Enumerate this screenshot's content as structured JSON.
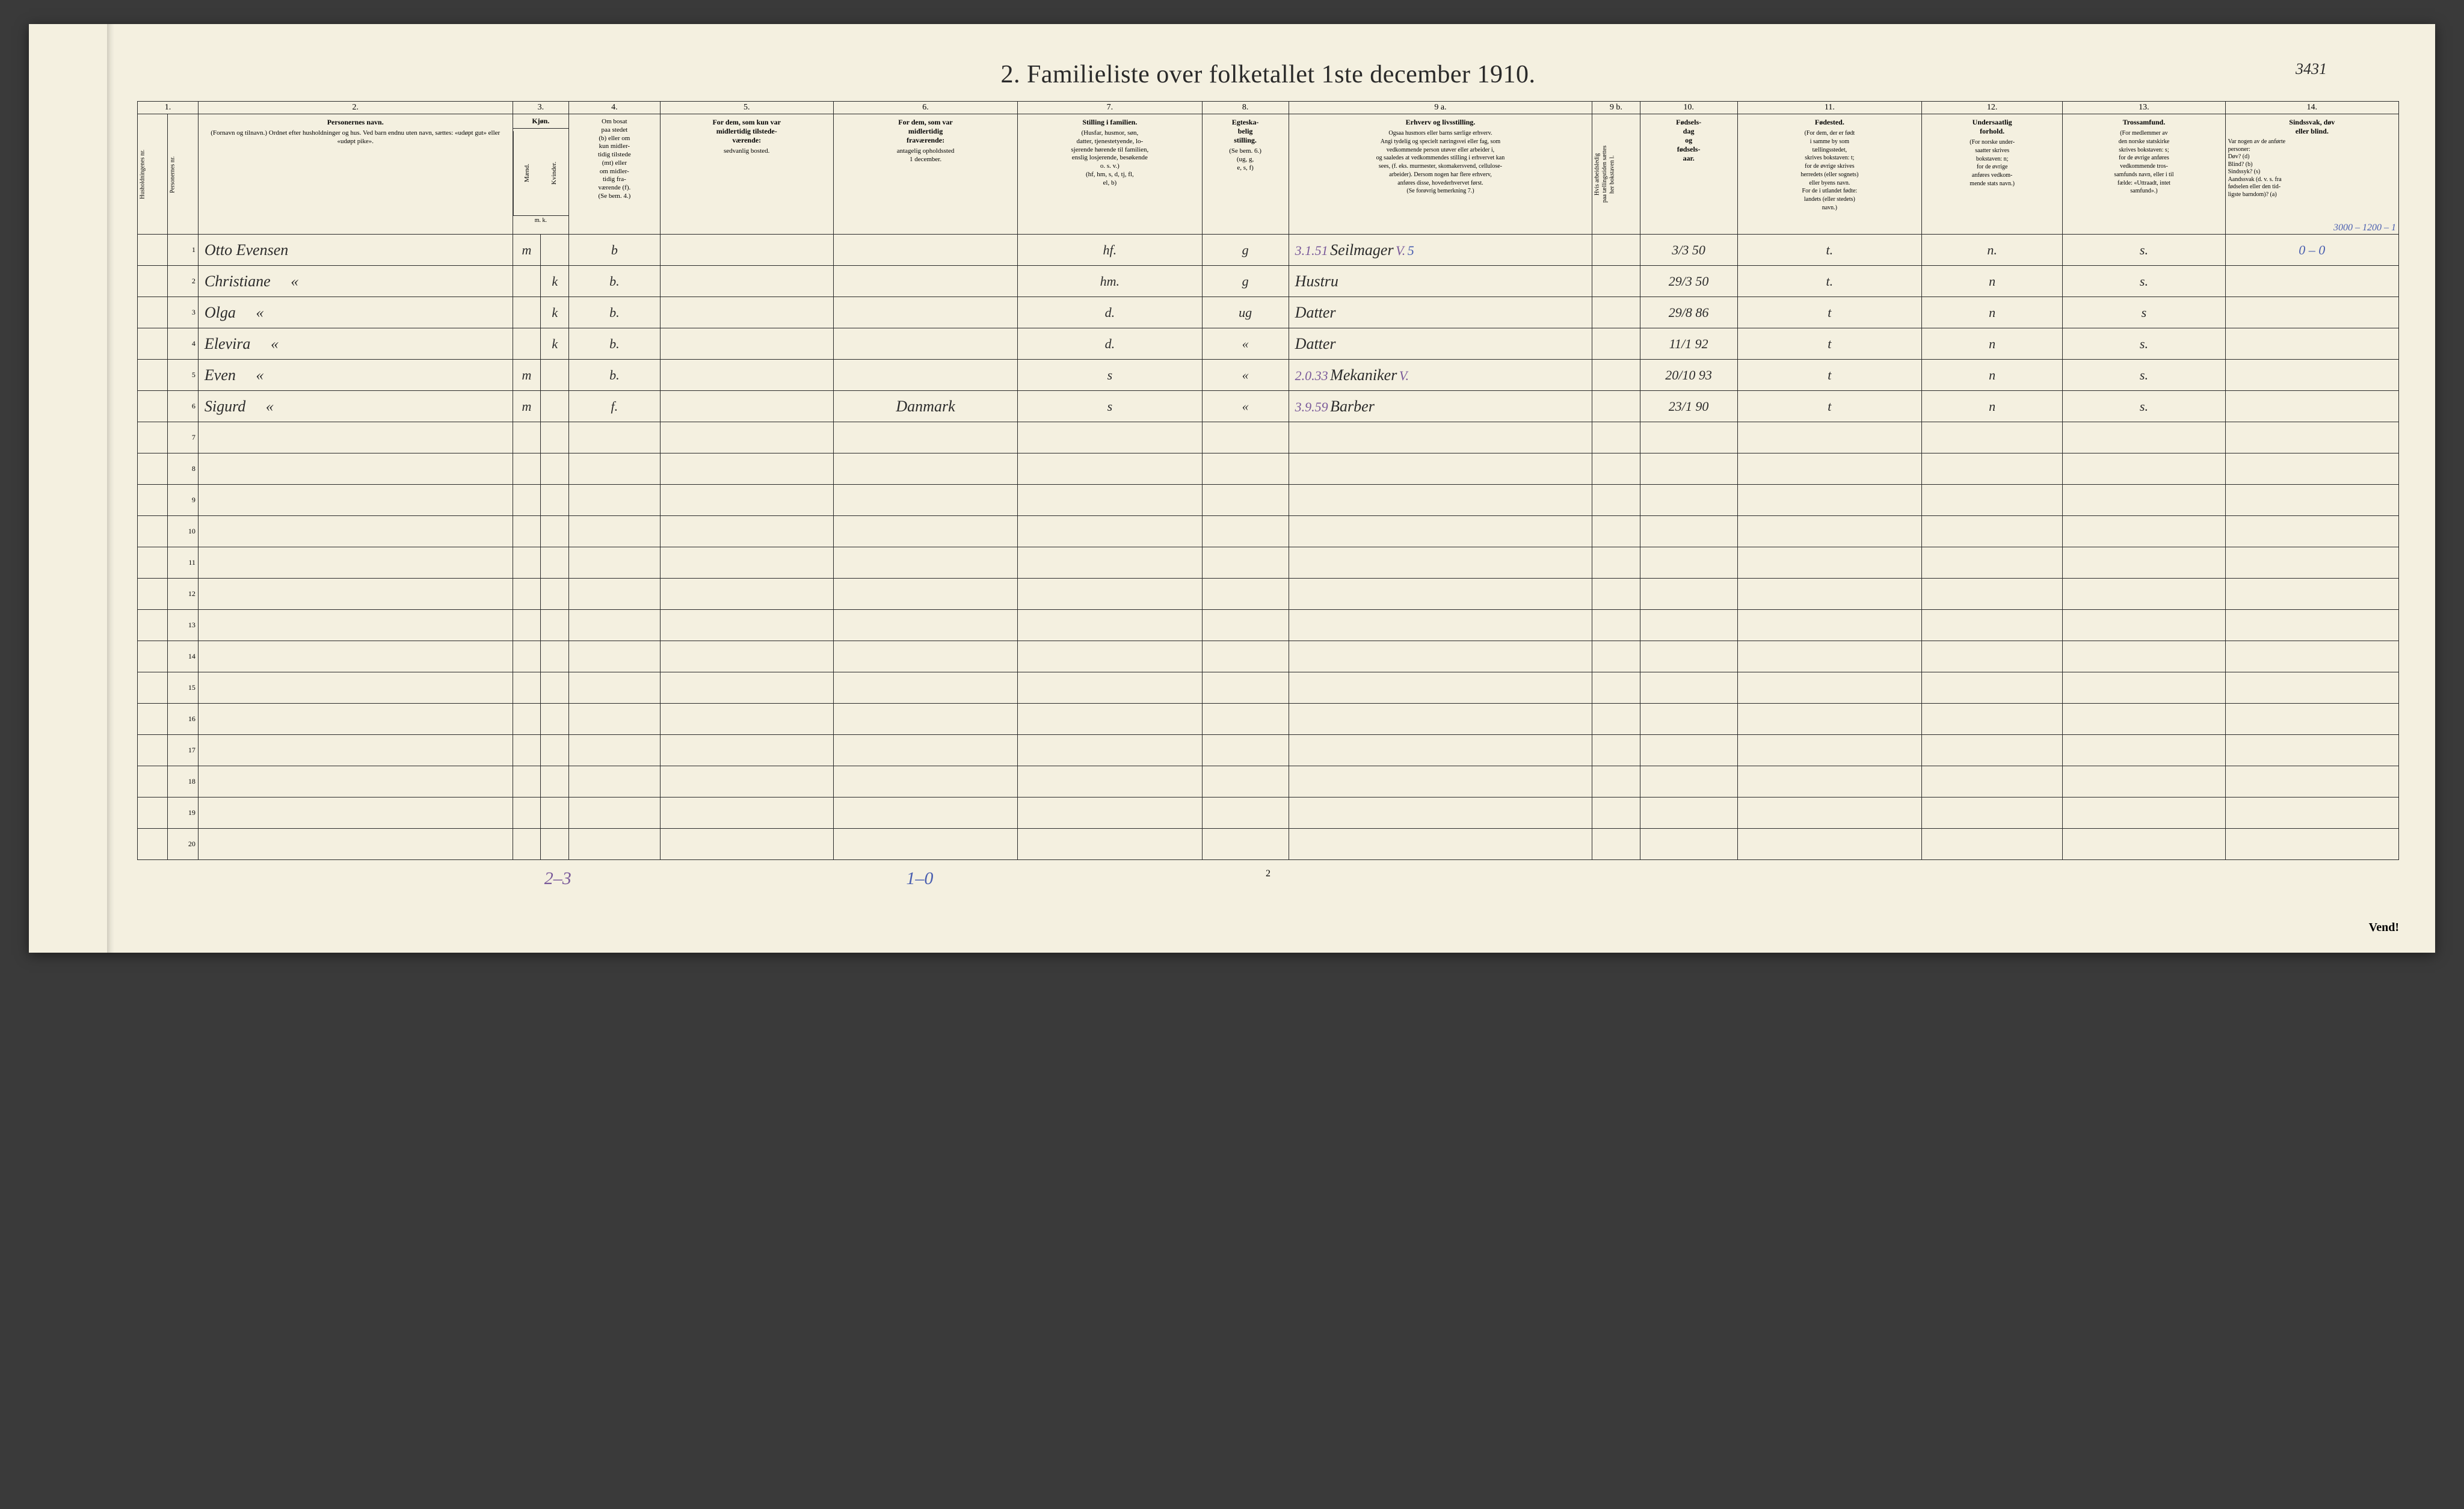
{
  "title": "2.   Familieliste over folketallet 1ste december 1910.",
  "page_annotation": "3431",
  "page_number": "2",
  "vend": "Vend!",
  "footer_annotations": {
    "left": "2–3",
    "mid": "1–0"
  },
  "col_numbers": [
    "1.",
    "2.",
    "3.",
    "4.",
    "5.",
    "6.",
    "7.",
    "8.",
    "9 a.",
    "9 b.",
    "10.",
    "11.",
    "12.",
    "13.",
    "14."
  ],
  "headers": {
    "c1a": "Husholdningenes nr.",
    "c1b": "Personernes nr.",
    "c2_main": "Personernes navn.",
    "c2_sub": "(Fornavn og tilnavn.)\nOrdnet efter husholdninger og hus.\nVed barn endnu uten navn, sættes: «udøpt gut»\neller «udøpt pike».",
    "c3_main": "Kjøn.",
    "c3a": "Mænd.",
    "c3b": "Kvinder.",
    "c3_foot": "m.  k.",
    "c4": "Om bosat\npaa stedet\n(b) eller om\nkun midler-\ntidig tilstede\n(mt) eller\nom midler-\ntidig fra-\nværende (f).\n(Se bem. 4.)",
    "c5_main": "For dem, som kun var\nmidlertidig tilstede-\nværende:",
    "c5_sub": "sedvanlig bosted.",
    "c6_main": "For dem, som var\nmidlertidig\nfraværende:",
    "c6_sub": "antagelig opholdssted\n1 december.",
    "c7_main": "Stilling i familien.",
    "c7_sub": "(Husfar, husmor, søn,\ndatter, tjenestetyende, lo-\nsjerende hørende til familien,\nenslig losjerende, besøkende\no. s. v.)\n(hf, hm, s, d, tj, fl,\nel, b)",
    "c8_main": "Egteska-\nbelig\nstilling.",
    "c8_sub": "(Se bem. 6.)\n(ug, g,\ne, s, f)",
    "c9a_main": "Erhverv og livsstilling.",
    "c9a_sub": "Ogsaa husmors eller barns særlige erhverv.\nAngi tydelig og specielt næringsvei eller fag, som\nvedkommende person utøver eller arbeider i,\nog saaledes at vedkommendes stilling i erhvervet kan\nsees, (f. eks. murmester, skomakersvend, cellulose-\narbeider). Dersom nogen har flere erhverv,\nanføres disse, hovederhvervet først.\n(Se forøvrig bemerkning 7.)",
    "c9b": "Hvis arbeidsledig\npaa tællingstiden sættes\nher bokstaven l.",
    "c10_main": "Fødsels-\ndag\nog\nfødsels-\naar.",
    "c11_main": "Fødested.",
    "c11_sub": "(For dem, der er født\ni samme by som\ntællingsstedet,\nskrives bokstaven: t;\nfor de øvrige skrives\nherredets (eller sognets)\neller byens navn.\nFor de i utlandet fødte:\nlandets (eller stedets)\nnavn.)",
    "c12_main": "Undersaatlig\nforhold.",
    "c12_sub": "(For norske under-\nsaatter skrives\nbokstaven: n;\nfor de øvrige\nanføres vedkom-\nmende stats navn.)",
    "c13_main": "Trossamfund.",
    "c13_sub": "(For medlemmer av\nden norske statskirke\nskrives bokstaven: s;\nfor de øvrige anføres\nvedkommende tros-\nsamfunds navn, eller i til\nfælde: «Uttraadt, intet\nsamfund».)",
    "c14_main": "Sindssvak, døv\neller blind.",
    "c14_sub": "Var nogen av de anførte\npersoner:\nDøv?        (d)\nBlind?      (b)\nSindssyk?  (s)\nAandssvak (d. v. s. fra\nfødselen eller den tid-\nligste barndom)? (a)"
  },
  "col14_top_annotation": "3000 – 1200 – 1",
  "rows": [
    {
      "n": "1",
      "name": "Otto Evensen",
      "ditto": "",
      "sex": "m",
      "res": "b",
      "away": "",
      "absent": "",
      "famrel": "hf.",
      "marital": "g",
      "occ": "Seilmager",
      "occ_pre": "3.1.51",
      "occ_suf": "V.",
      "occ_grade": "5",
      "led": "",
      "dob": "3/3 50",
      "birthplace": "t.",
      "nat": "n.",
      "rel": "s.",
      "c14": "0  –  0"
    },
    {
      "n": "2",
      "name": "Christiane",
      "ditto": "«",
      "sex": "k",
      "res": "b.",
      "away": "",
      "absent": "",
      "famrel": "hm.",
      "marital": "g",
      "occ": "Hustru",
      "occ_pre": "",
      "occ_suf": "",
      "occ_grade": "",
      "led": "",
      "dob": "29/3 50",
      "birthplace": "t.",
      "nat": "n",
      "rel": "s.",
      "c14": ""
    },
    {
      "n": "3",
      "name": "Olga",
      "ditto": "«",
      "sex": "k",
      "res": "b.",
      "away": "",
      "absent": "",
      "famrel": "d.",
      "marital": "ug",
      "occ": "Datter",
      "occ_pre": "",
      "occ_suf": "",
      "occ_grade": "",
      "led": "",
      "dob": "29/8 86",
      "birthplace": "t",
      "nat": "n",
      "rel": "s",
      "c14": ""
    },
    {
      "n": "4",
      "name": "Elevira",
      "ditto": "«",
      "sex": "k",
      "res": "b.",
      "away": "",
      "absent": "",
      "famrel": "d.",
      "marital": "«",
      "occ": "Datter",
      "occ_pre": "",
      "occ_suf": "",
      "occ_grade": "",
      "led": "",
      "dob": "11/1 92",
      "birthplace": "t",
      "nat": "n",
      "rel": "s.",
      "c14": ""
    },
    {
      "n": "5",
      "name": "Even",
      "ditto": "«",
      "sex": "m",
      "res": "b.",
      "away": "",
      "absent": "",
      "famrel": "s",
      "marital": "«",
      "occ": "Mekaniker",
      "occ_pre": "2.0.33",
      "occ_suf": "V.",
      "occ_grade": "",
      "led": "",
      "dob": "20/10 93",
      "birthplace": "t",
      "nat": "n",
      "rel": "s.",
      "c14": ""
    },
    {
      "n": "6",
      "name": "Sigurd",
      "ditto": "«",
      "sex": "m",
      "res": "f.",
      "away": "",
      "absent": "Danmark",
      "famrel": "s",
      "marital": "«",
      "occ": "Barber",
      "occ_pre": "3.9.59",
      "occ_suf": "",
      "occ_grade": "",
      "led": "",
      "dob": "23/1 90",
      "birthplace": "t",
      "nat": "n",
      "rel": "s.",
      "c14": ""
    }
  ],
  "empty_rows": [
    "7",
    "8",
    "9",
    "10",
    "11",
    "12",
    "13",
    "14",
    "15",
    "16",
    "17",
    "18",
    "19",
    "20"
  ],
  "colors": {
    "paper": "#f4f0e0",
    "ink": "#2a2a2a",
    "hand": "#2b2b2b",
    "blue_pencil": "#4a5fb0",
    "purple_pencil": "#7a5a9a",
    "page_bg": "#3a3a3a"
  },
  "column_widths_pct": {
    "c1a": 1.4,
    "c1b": 1.4,
    "c2": 14.5,
    "c3a": 1.3,
    "c3b": 1.3,
    "c4": 4.2,
    "c5": 8.0,
    "c6": 8.5,
    "c7": 8.5,
    "c8": 4.0,
    "c9a": 14.0,
    "c9b": 2.2,
    "c10": 4.5,
    "c11": 8.5,
    "c12": 6.5,
    "c13": 7.5,
    "c14": 8.0
  }
}
